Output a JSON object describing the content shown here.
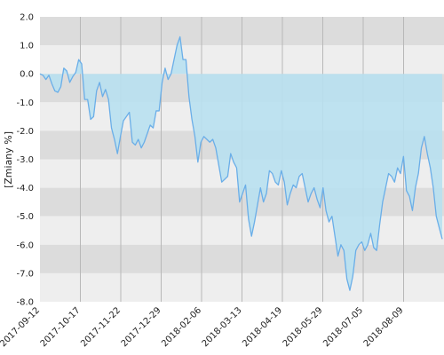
{
  "chart_data": {
    "type": "area",
    "ylabel": "[Zmiany %]",
    "ylim": [
      -8,
      2
    ],
    "y_ticks": [
      "2.0",
      "1.0",
      "0.0",
      "-1.0",
      "-2.0",
      "-3.0",
      "-4.0",
      "-5.0",
      "-6.0",
      "-7.0",
      "-8.0"
    ],
    "x_ticks": [
      "2017-09-12",
      "2017-10-17",
      "2017-11-22",
      "2017-12-29",
      "2018-02-06",
      "2018-03-13",
      "2018-04-19",
      "2018-05-29",
      "2018-07-05",
      "2018-08-09"
    ],
    "grid": true,
    "colors": {
      "line": "#6aaee8",
      "fill_positive": "#a8d0e0",
      "fill_negative": "#b8e0f0",
      "band_dark": "#dcdcdc",
      "band_light": "#eeeeee",
      "grid": "#b8b8b8"
    },
    "series": [
      {
        "values": [
          0.0,
          -0.05,
          -0.2,
          -0.05,
          -0.35,
          -0.6,
          -0.65,
          -0.45,
          0.2,
          0.1,
          -0.3,
          -0.1,
          0.05,
          0.5,
          0.35,
          -0.9,
          -0.9,
          -1.6,
          -1.5,
          -0.6,
          -0.3,
          -0.8,
          -0.55,
          -0.9,
          -1.9,
          -2.3,
          -2.8,
          -2.2,
          -1.65,
          -1.5,
          -1.35,
          -2.4,
          -2.5,
          -2.3,
          -2.6,
          -2.4,
          -2.1,
          -1.8,
          -1.9,
          -1.3,
          -1.3,
          -0.3,
          0.2,
          -0.2,
          0.0,
          0.5,
          1.0,
          1.3,
          0.5,
          0.5,
          -0.8,
          -1.6,
          -2.2,
          -3.1,
          -2.4,
          -2.2,
          -2.3,
          -2.4,
          -2.3,
          -2.6,
          -3.2,
          -3.8,
          -3.7,
          -3.6,
          -2.8,
          -3.1,
          -3.3,
          -4.5,
          -4.2,
          -3.9,
          -5.1,
          -5.7,
          -5.2,
          -4.6,
          -4.0,
          -4.5,
          -4.2,
          -3.4,
          -3.5,
          -3.8,
          -3.9,
          -3.4,
          -3.8,
          -4.6,
          -4.2,
          -3.9,
          -4.0,
          -3.6,
          -3.5,
          -4.0,
          -4.5,
          -4.2,
          -4.0,
          -4.4,
          -4.7,
          -4.0,
          -4.8,
          -5.2,
          -5.0,
          -5.7,
          -6.4,
          -6.0,
          -6.2,
          -7.2,
          -7.6,
          -7.1,
          -6.2,
          -6.0,
          -5.9,
          -6.2,
          -6.0,
          -5.6,
          -6.1,
          -6.2,
          -5.3,
          -4.5,
          -4.0,
          -3.5,
          -3.6,
          -3.8,
          -3.3,
          -3.5,
          -2.9,
          -4.1,
          -4.3,
          -4.8,
          -4.0,
          -3.5,
          -2.6,
          -2.2,
          -2.8,
          -3.3,
          -4.0,
          -5.0,
          -5.4,
          -5.8
        ]
      }
    ]
  }
}
